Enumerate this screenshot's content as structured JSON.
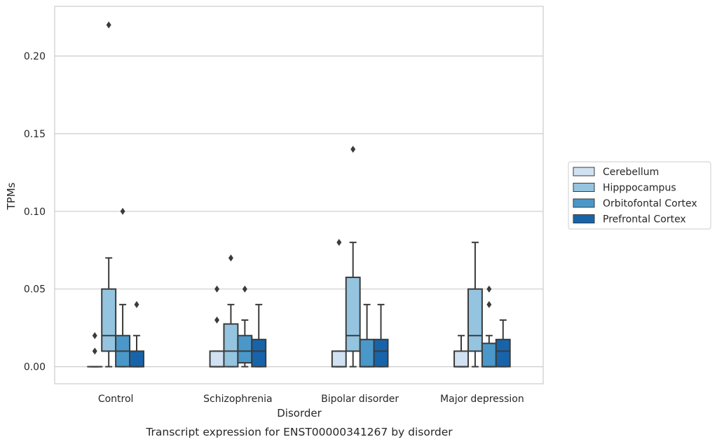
{
  "chart_data": {
    "type": "box",
    "title": "",
    "caption": "Transcript expression for ENST00000341267 by disorder",
    "xlabel": "Disorder",
    "ylabel": "TPMs",
    "ylim": [
      -0.011,
      0.232
    ],
    "yticks": [
      0.0,
      0.05,
      0.1,
      0.15,
      0.2
    ],
    "ytick_labels": [
      "0.00",
      "0.05",
      "0.10",
      "0.15",
      "0.20"
    ],
    "grid": "horizontal",
    "legend_position": "right",
    "categories": [
      "Control",
      "Schizophrenia",
      "Bipolar disorder",
      "Major depression"
    ],
    "series": [
      {
        "name": "Cerebellum",
        "color": "#d0e1f2",
        "boxes": [
          {
            "q1": 0.0,
            "median": 0.0,
            "q3": 0.0,
            "whislo": 0.0,
            "whishi": 0.0,
            "fliers": [
              0.01,
              0.02
            ]
          },
          {
            "q1": 0.0,
            "median": 0.0,
            "q3": 0.01,
            "whislo": 0.0,
            "whishi": 0.01,
            "fliers": [
              0.03,
              0.05
            ]
          },
          {
            "q1": 0.0,
            "median": 0.0,
            "q3": 0.01,
            "whislo": 0.0,
            "whishi": 0.01,
            "fliers": [
              0.08
            ]
          },
          {
            "q1": 0.0,
            "median": 0.0,
            "q3": 0.01,
            "whislo": 0.0,
            "whishi": 0.02,
            "fliers": []
          }
        ]
      },
      {
        "name": "Hipppocampus",
        "color": "#94c4df",
        "boxes": [
          {
            "q1": 0.01,
            "median": 0.02,
            "q3": 0.05,
            "whislo": 0.0,
            "whishi": 0.07,
            "fliers": [
              0.22
            ]
          },
          {
            "q1": 0.0,
            "median": 0.01,
            "q3": 0.0275,
            "whislo": 0.0,
            "whishi": 0.04,
            "fliers": [
              0.07
            ]
          },
          {
            "q1": 0.01,
            "median": 0.02,
            "q3": 0.0575,
            "whislo": 0.0,
            "whishi": 0.08,
            "fliers": [
              0.14
            ]
          },
          {
            "q1": 0.01,
            "median": 0.02,
            "q3": 0.05,
            "whislo": 0.0,
            "whishi": 0.08,
            "fliers": []
          }
        ]
      },
      {
        "name": "Orbitofontal Cortex",
        "color": "#4a98c9",
        "boxes": [
          {
            "q1": 0.0,
            "median": 0.01,
            "q3": 0.02,
            "whislo": 0.0,
            "whishi": 0.04,
            "fliers": [
              0.1
            ]
          },
          {
            "q1": 0.0025,
            "median": 0.01,
            "q3": 0.02,
            "whislo": 0.0,
            "whishi": 0.03,
            "fliers": [
              0.05
            ]
          },
          {
            "q1": 0.0,
            "median": 0.0,
            "q3": 0.0175,
            "whislo": 0.0,
            "whishi": 0.04,
            "fliers": []
          },
          {
            "q1": 0.0,
            "median": 0.0,
            "q3": 0.015,
            "whislo": 0.0,
            "whishi": 0.02,
            "fliers": [
              0.04,
              0.05
            ]
          }
        ]
      },
      {
        "name": "Prefrontal Cortex",
        "color": "#1764ab",
        "boxes": [
          {
            "q1": 0.0,
            "median": 0.0,
            "q3": 0.01,
            "whislo": 0.0,
            "whishi": 0.02,
            "fliers": [
              0.04
            ]
          },
          {
            "q1": 0.0,
            "median": 0.01,
            "q3": 0.0175,
            "whislo": 0.0,
            "whishi": 0.04,
            "fliers": []
          },
          {
            "q1": 0.0,
            "median": 0.01,
            "q3": 0.0175,
            "whislo": 0.0,
            "whishi": 0.04,
            "fliers": []
          },
          {
            "q1": 0.0,
            "median": 0.01,
            "q3": 0.0175,
            "whislo": 0.0,
            "whishi": 0.03,
            "fliers": []
          }
        ]
      }
    ]
  }
}
